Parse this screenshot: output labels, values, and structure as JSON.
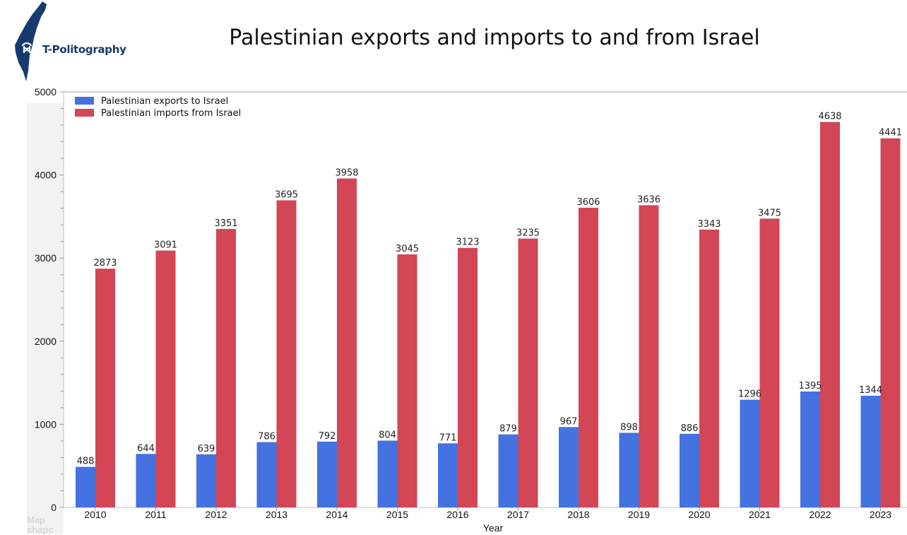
{
  "logo": {
    "text": "T-Politography",
    "brand_color": "#173a6e"
  },
  "page_title": "Palestinian exports and imports to and from Israel",
  "watermark": [
    "Map",
    "shapc"
  ],
  "chart_data": {
    "type": "bar",
    "title": "Palestinian exports and imports to and from Israel",
    "xlabel": "Year",
    "ylabel": "",
    "ylim": [
      0,
      5000
    ],
    "yticks": [
      0,
      1000,
      2000,
      3000,
      4000,
      5000
    ],
    "grid": false,
    "legend_position": "top-left",
    "categories": [
      "2010",
      "2011",
      "2012",
      "2013",
      "2014",
      "2015",
      "2016",
      "2017",
      "2018",
      "2019",
      "2020",
      "2021",
      "2022",
      "2023"
    ],
    "series": [
      {
        "name": "Palestinian exports to Israel",
        "color": "#4472e0",
        "values": [
          488,
          644,
          639,
          786,
          792,
          804,
          771,
          879,
          967,
          898,
          886,
          1296,
          1395,
          1344
        ]
      },
      {
        "name": "Palestinian imports from Israel",
        "color": "#d24656",
        "values": [
          2873,
          3091,
          3351,
          3695,
          3958,
          3045,
          3123,
          3235,
          3606,
          3636,
          3343,
          3475,
          4638,
          4441
        ]
      }
    ]
  }
}
